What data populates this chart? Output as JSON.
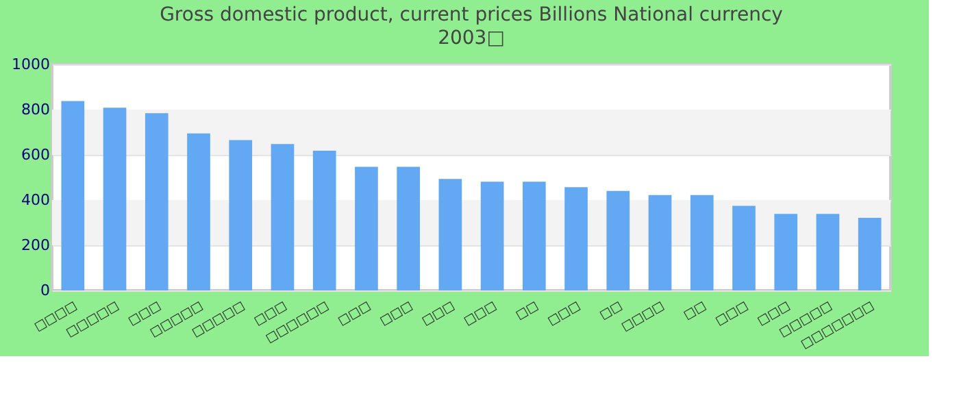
{
  "chart_data": {
    "type": "bar",
    "title": "Gross domestic product, current prices Billions National currency",
    "subtitle": "2003□",
    "categories": [
      "□□□□",
      "□□□□□",
      "□□□",
      "□□□□□",
      "□□□□□",
      "□□□",
      "□□□□□□",
      "□□□",
      "□□□",
      "□□□",
      "□□□",
      "□□",
      "□□□",
      "□□",
      "□□□□",
      "□□",
      "□□□",
      "□□□",
      "□□□□□",
      "□□□□□□□"
    ],
    "values": [
      838,
      808,
      784,
      695,
      665,
      648,
      618,
      547,
      547,
      493,
      481,
      481,
      457,
      440,
      422,
      422,
      374,
      339,
      339,
      321
    ],
    "color": "#63a8f3",
    "ylim": [
      0,
      1000
    ],
    "yticks": [
      0,
      200,
      400,
      600,
      800,
      1000
    ],
    "grid": "y"
  }
}
